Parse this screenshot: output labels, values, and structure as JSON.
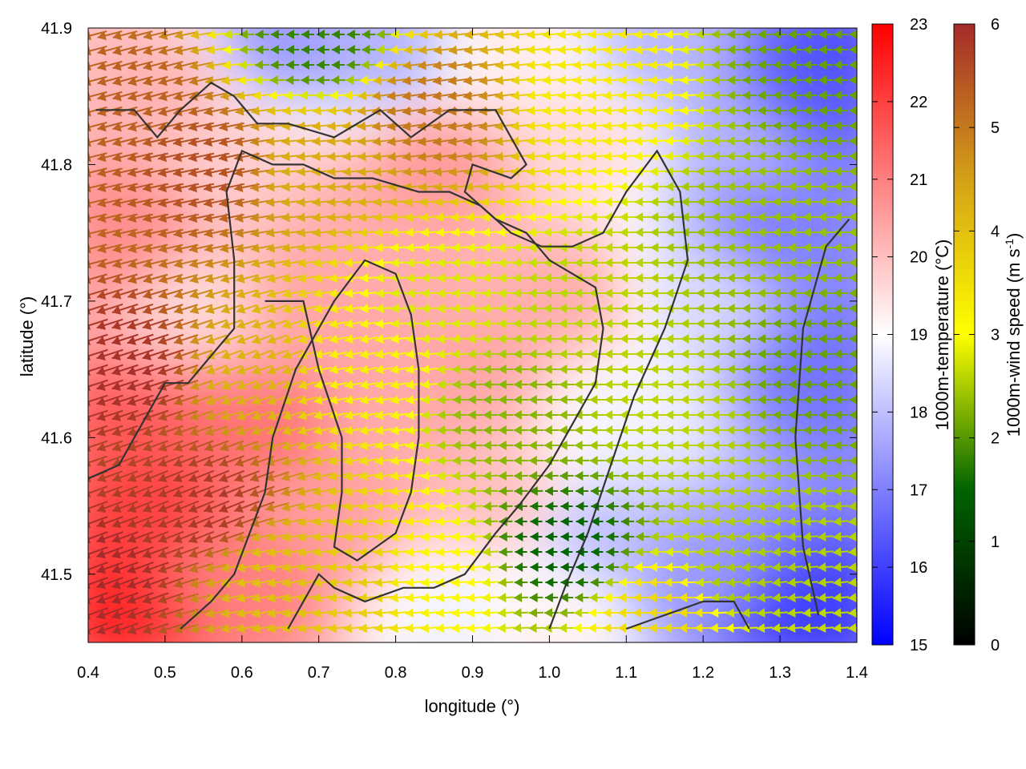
{
  "chart_data": {
    "type": "heatmap",
    "title": "",
    "xlabel": "longitude (°)",
    "ylabel": "latitude (°)",
    "xlim": [
      0.4,
      1.4
    ],
    "ylim": [
      41.45,
      41.9
    ],
    "xticks": [
      "0.4",
      "0.5",
      "0.6",
      "0.7",
      "0.8",
      "0.9",
      "1.0",
      "1.1",
      "1.2",
      "1.3",
      "1.4"
    ],
    "yticks": [
      "41.5",
      "41.6",
      "41.7",
      "41.8",
      "41.9"
    ],
    "grid": false,
    "temperature_colorbar": {
      "label": "1000m-temperature (°C)",
      "range": [
        15,
        23
      ],
      "ticks": [
        "15",
        "16",
        "17",
        "18",
        "19",
        "20",
        "21",
        "22",
        "23"
      ],
      "colors": [
        "#0000ff",
        "#ffffff",
        "#ff0000"
      ]
    },
    "wind_colorbar": {
      "label_main": "1000m-wind speed (m s",
      "label_sup": "-1",
      "label_end": ")",
      "range": [
        0,
        6
      ],
      "ticks": [
        "0",
        "1",
        "2",
        "3",
        "4",
        "5",
        "6"
      ],
      "colors": [
        "#000000",
        "#006400",
        "#ffff00",
        "#d4a017",
        "#a52a2a"
      ]
    },
    "temperature_field_points": [
      {
        "lon": 0.42,
        "lat": 41.47,
        "t": 22.4
      },
      {
        "lon": 0.45,
        "lat": 41.6,
        "t": 21.6
      },
      {
        "lon": 0.45,
        "lat": 41.75,
        "t": 20.8
      },
      {
        "lon": 0.5,
        "lat": 41.86,
        "t": 20.2
      },
      {
        "lon": 0.55,
        "lat": 41.7,
        "t": 19.6
      },
      {
        "lon": 0.62,
        "lat": 41.6,
        "t": 21.2
      },
      {
        "lon": 0.6,
        "lat": 41.5,
        "t": 21.0
      },
      {
        "lon": 0.7,
        "lat": 41.55,
        "t": 20.5
      },
      {
        "lon": 0.75,
        "lat": 41.75,
        "t": 20.3
      },
      {
        "lon": 0.8,
        "lat": 41.6,
        "t": 20.3
      },
      {
        "lon": 0.85,
        "lat": 41.8,
        "t": 20.6
      },
      {
        "lon": 0.9,
        "lat": 41.65,
        "t": 20.4
      },
      {
        "lon": 0.95,
        "lat": 41.55,
        "t": 20.0
      },
      {
        "lon": 1.05,
        "lat": 41.53,
        "t": 18.0
      },
      {
        "lon": 0.88,
        "lat": 41.47,
        "t": 18.8
      },
      {
        "lon": 1.02,
        "lat": 41.7,
        "t": 20.3
      },
      {
        "lon": 1.05,
        "lat": 41.82,
        "t": 19.6
      },
      {
        "lon": 1.1,
        "lat": 41.62,
        "t": 18.8
      },
      {
        "lon": 1.2,
        "lat": 41.7,
        "t": 18.4
      },
      {
        "lon": 1.2,
        "lat": 41.5,
        "t": 17.4
      },
      {
        "lon": 1.25,
        "lat": 41.82,
        "t": 17.8
      },
      {
        "lon": 1.15,
        "lat": 41.88,
        "t": 17.9
      },
      {
        "lon": 1.33,
        "lat": 41.85,
        "t": 16.4
      },
      {
        "lon": 1.35,
        "lat": 41.65,
        "t": 16.8
      },
      {
        "lon": 1.33,
        "lat": 41.47,
        "t": 16.0
      },
      {
        "lon": 1.3,
        "lat": 41.75,
        "t": 17.0
      },
      {
        "lon": 0.65,
        "lat": 41.89,
        "t": 17.4
      },
      {
        "lon": 0.78,
        "lat": 41.88,
        "t": 17.8
      },
      {
        "lon": 0.6,
        "lat": 41.8,
        "t": 19.8
      },
      {
        "lon": 0.68,
        "lat": 41.7,
        "t": 20.4
      },
      {
        "lon": 0.95,
        "lat": 41.88,
        "t": 19.3
      },
      {
        "lon": 1.0,
        "lat": 41.47,
        "t": 19.2
      },
      {
        "lon": 0.48,
        "lat": 41.55,
        "t": 22.0
      },
      {
        "lon": 1.38,
        "lat": 41.9,
        "t": 16.2
      }
    ],
    "wind_field_points": [
      {
        "lon": 0.42,
        "lat": 41.5,
        "speed": 6.0,
        "dir_deg": 200
      },
      {
        "lon": 0.45,
        "lat": 41.65,
        "speed": 5.9,
        "dir_deg": 198
      },
      {
        "lon": 0.45,
        "lat": 41.85,
        "speed": 5.3,
        "dir_deg": 195
      },
      {
        "lon": 0.55,
        "lat": 41.55,
        "speed": 5.8,
        "dir_deg": 202
      },
      {
        "lon": 0.55,
        "lat": 41.8,
        "speed": 5.5,
        "dir_deg": 192
      },
      {
        "lon": 0.62,
        "lat": 41.65,
        "speed": 4.2,
        "dir_deg": 200
      },
      {
        "lon": 0.65,
        "lat": 41.5,
        "speed": 4.0,
        "dir_deg": 190
      },
      {
        "lon": 0.7,
        "lat": 41.8,
        "speed": 4.3,
        "dir_deg": 185
      },
      {
        "lon": 0.75,
        "lat": 41.65,
        "speed": 3.2,
        "dir_deg": 190
      },
      {
        "lon": 0.75,
        "lat": 41.5,
        "speed": 3.8,
        "dir_deg": 185
      },
      {
        "lon": 0.85,
        "lat": 41.7,
        "speed": 2.8,
        "dir_deg": 183
      },
      {
        "lon": 0.85,
        "lat": 41.5,
        "speed": 3.1,
        "dir_deg": 185
      },
      {
        "lon": 0.85,
        "lat": 41.84,
        "speed": 5.0,
        "dir_deg": 188
      },
      {
        "lon": 0.95,
        "lat": 41.62,
        "speed": 2.3,
        "dir_deg": 180
      },
      {
        "lon": 1.02,
        "lat": 41.52,
        "speed": 1.5,
        "dir_deg": 180
      },
      {
        "lon": 1.05,
        "lat": 41.7,
        "speed": 2.6,
        "dir_deg": 180
      },
      {
        "lon": 1.05,
        "lat": 41.85,
        "speed": 3.3,
        "dir_deg": 185
      },
      {
        "lon": 1.15,
        "lat": 41.62,
        "speed": 2.6,
        "dir_deg": 180
      },
      {
        "lon": 1.25,
        "lat": 41.75,
        "speed": 2.4,
        "dir_deg": 180
      },
      {
        "lon": 1.25,
        "lat": 41.5,
        "speed": 2.5,
        "dir_deg": 185
      },
      {
        "lon": 1.35,
        "lat": 41.65,
        "speed": 2.1,
        "dir_deg": 180
      },
      {
        "lon": 1.35,
        "lat": 41.87,
        "speed": 2.1,
        "dir_deg": 180
      },
      {
        "lon": 0.7,
        "lat": 41.89,
        "speed": 1.8,
        "dir_deg": 180
      },
      {
        "lon": 1.15,
        "lat": 41.47,
        "speed": 3.6,
        "dir_deg": 180
      }
    ],
    "contour_lines_lonlat": [
      [
        [
          0.41,
          41.84
        ],
        [
          0.46,
          41.84
        ],
        [
          0.49,
          41.82
        ],
        [
          0.52,
          41.84
        ],
        [
          0.56,
          41.86
        ],
        [
          0.59,
          41.85
        ],
        [
          0.62,
          41.83
        ],
        [
          0.66,
          41.83
        ],
        [
          0.72,
          41.82
        ],
        [
          0.78,
          41.84
        ],
        [
          0.82,
          41.82
        ],
        [
          0.87,
          41.84
        ],
        [
          0.93,
          41.84
        ],
        [
          0.97,
          41.8
        ],
        [
          0.95,
          41.79
        ],
        [
          0.9,
          41.8
        ],
        [
          0.89,
          41.78
        ],
        [
          0.93,
          41.76
        ],
        [
          0.97,
          41.75
        ],
        [
          1.0,
          41.73
        ],
        [
          1.03,
          41.72
        ],
        [
          1.06,
          41.71
        ],
        [
          1.07,
          41.68
        ],
        [
          1.06,
          41.64
        ],
        [
          1.03,
          41.61
        ],
        [
          1.0,
          41.58
        ],
        [
          0.96,
          41.55
        ],
        [
          0.93,
          41.53
        ],
        [
          0.89,
          41.5
        ],
        [
          0.85,
          41.49
        ],
        [
          0.81,
          41.49
        ],
        [
          0.76,
          41.48
        ],
        [
          0.72,
          41.49
        ],
        [
          0.7,
          41.5
        ],
        [
          0.68,
          41.48
        ],
        [
          0.66,
          41.46
        ]
      ],
      [
        [
          0.52,
          41.46
        ],
        [
          0.56,
          41.48
        ],
        [
          0.59,
          41.5
        ],
        [
          0.61,
          41.53
        ],
        [
          0.63,
          41.56
        ],
        [
          0.64,
          41.6
        ],
        [
          0.67,
          41.65
        ],
        [
          0.72,
          41.7
        ],
        [
          0.76,
          41.73
        ],
        [
          0.8,
          41.72
        ],
        [
          0.82,
          41.69
        ],
        [
          0.83,
          41.65
        ],
        [
          0.83,
          41.6
        ],
        [
          0.82,
          41.56
        ],
        [
          0.8,
          41.53
        ],
        [
          0.75,
          41.51
        ],
        [
          0.72,
          41.52
        ],
        [
          0.73,
          41.56
        ],
        [
          0.73,
          41.6
        ],
        [
          0.7,
          41.65
        ],
        [
          0.68,
          41.7
        ],
        [
          0.63,
          41.7
        ]
      ],
      [
        [
          0.4,
          41.57
        ],
        [
          0.44,
          41.58
        ],
        [
          0.47,
          41.61
        ],
        [
          0.5,
          41.64
        ],
        [
          0.53,
          41.64
        ],
        [
          0.56,
          41.66
        ],
        [
          0.59,
          41.68
        ],
        [
          0.59,
          41.73
        ],
        [
          0.58,
          41.78
        ],
        [
          0.6,
          41.81
        ],
        [
          0.64,
          41.8
        ],
        [
          0.68,
          41.8
        ],
        [
          0.72,
          41.79
        ],
        [
          0.77,
          41.79
        ],
        [
          0.83,
          41.78
        ],
        [
          0.87,
          41.78
        ],
        [
          0.91,
          41.77
        ],
        [
          0.95,
          41.75
        ],
        [
          0.99,
          41.74
        ],
        [
          1.03,
          41.74
        ],
        [
          1.07,
          41.75
        ],
        [
          1.1,
          41.78
        ],
        [
          1.14,
          41.81
        ],
        [
          1.17,
          41.78
        ],
        [
          1.18,
          41.73
        ],
        [
          1.15,
          41.68
        ],
        [
          1.11,
          41.63
        ],
        [
          1.08,
          41.58
        ],
        [
          1.05,
          41.53
        ],
        [
          1.02,
          41.49
        ],
        [
          1.0,
          41.46
        ]
      ],
      [
        [
          1.1,
          41.46
        ],
        [
          1.15,
          41.47
        ],
        [
          1.2,
          41.48
        ],
        [
          1.24,
          41.48
        ],
        [
          1.26,
          41.46
        ]
      ],
      [
        [
          1.35,
          41.47
        ],
        [
          1.33,
          41.52
        ],
        [
          1.32,
          41.6
        ],
        [
          1.33,
          41.68
        ],
        [
          1.36,
          41.74
        ],
        [
          1.39,
          41.76
        ]
      ]
    ]
  }
}
